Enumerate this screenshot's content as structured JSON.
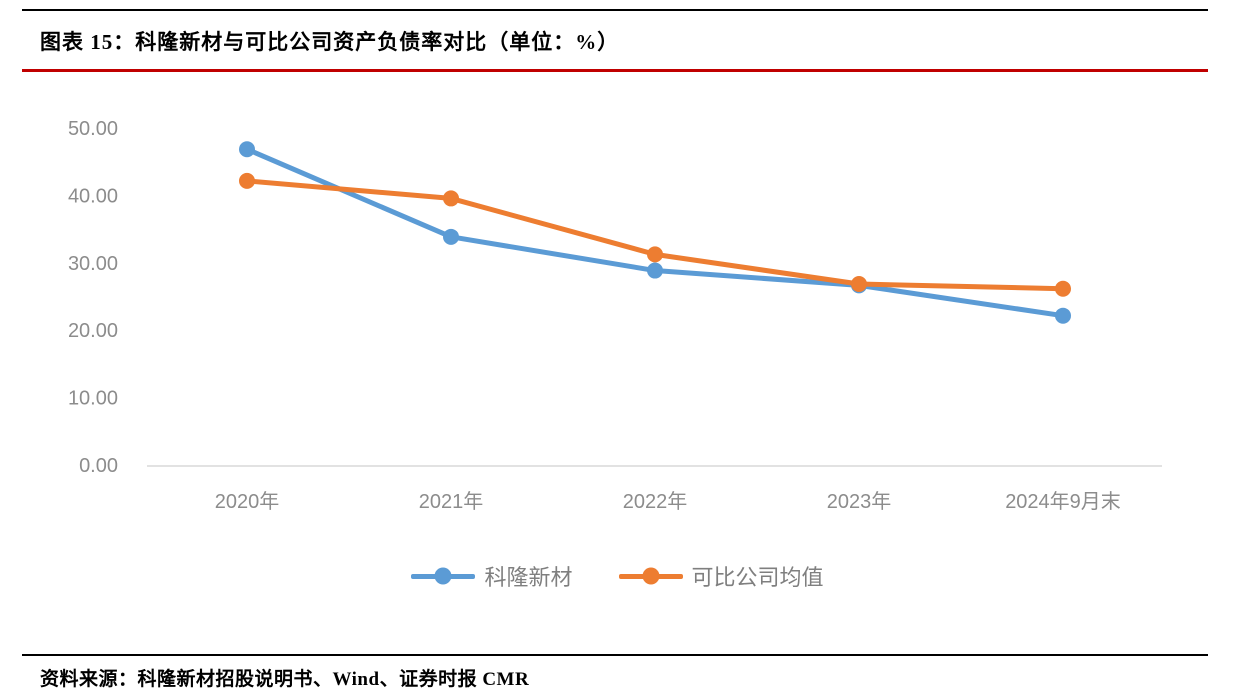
{
  "page": {
    "title": "图表 15：科隆新材与可比公司资产负债率对比（单位：%）",
    "source": "资料来源：科隆新材招股说明书、Wind、证券时报 CMR"
  },
  "colors": {
    "series_blue": "#5B9BD5",
    "series_orange": "#ED7D31",
    "accent_red": "#C00000",
    "rule_black": "#000000",
    "axis_text": "#8C8C8C",
    "legend_text": "#7f7f7f",
    "axis_line": "#D9D9D9"
  },
  "chart_data": {
    "type": "line",
    "title": "图表 15：科隆新材与可比公司资产负债率对比（单位：%）",
    "unit": "%",
    "categories": [
      "2020年",
      "2021年",
      "2022年",
      "2023年",
      "2024年9月末"
    ],
    "series": [
      {
        "name": "科隆新材",
        "color": "#5B9BD5",
        "values": [
          47.0,
          34.0,
          29.0,
          26.8,
          22.3
        ]
      },
      {
        "name": "可比公司均值",
        "color": "#ED7D31",
        "values": [
          42.3,
          39.7,
          31.4,
          27.0,
          26.3
        ]
      }
    ],
    "ylim": [
      0,
      50
    ],
    "ytick_step": 10,
    "ytick_labels": [
      "0.00",
      "10.00",
      "20.00",
      "30.00",
      "40.00",
      "50.00"
    ],
    "grid": false,
    "legend_position": "bottom"
  }
}
